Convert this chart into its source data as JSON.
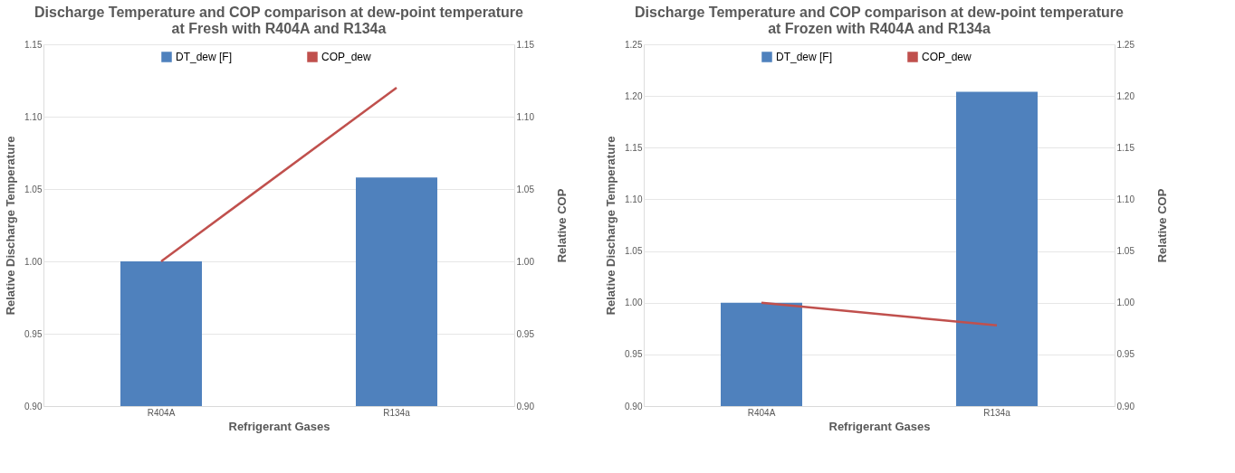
{
  "chart_data": [
    {
      "type": "bar",
      "title": "Discharge Temperature and COP comparison at dew-point temperature\nat Fresh with R404A and R134a",
      "xlabel": "Refrigerant Gases",
      "ylabel": "Relative Discharge Temperature",
      "y2label": "Relative COP",
      "categories": [
        "R404A",
        "R134a"
      ],
      "series": [
        {
          "name": "DT_dew [F]",
          "color": "#4f81bd",
          "values": [
            1.0,
            1.058
          ]
        },
        {
          "name": "COP_dew",
          "type": "line",
          "axis": "y2",
          "color": "#c0504d",
          "values": [
            1.0,
            1.12
          ]
        }
      ],
      "ylim": [
        0.9,
        1.15
      ],
      "yticks": [
        {
          "value": 0.9,
          "label": "0.90"
        },
        {
          "value": 0.95,
          "label": "0.95"
        },
        {
          "value": 1.0,
          "label": "1.00"
        },
        {
          "value": 1.05,
          "label": "1.05"
        },
        {
          "value": 1.1,
          "label": "1.10"
        },
        {
          "value": 1.15,
          "label": "1.15"
        }
      ],
      "y2lim": [
        0.9,
        1.15
      ],
      "y2ticks": [
        {
          "value": 0.9,
          "label": "0.90"
        },
        {
          "value": 0.95,
          "label": "0.95"
        },
        {
          "value": 1.0,
          "label": "1.00"
        },
        {
          "value": 1.05,
          "label": "1.05"
        },
        {
          "value": 1.1,
          "label": "1.10"
        },
        {
          "value": 1.15,
          "label": "1.15"
        }
      ],
      "grid": "y",
      "legend": "top"
    },
    {
      "type": "bar",
      "title": "Discharge Temperature and COP comparison at dew-point temperature\nat Frozen with R404A and R134a",
      "xlabel": "Refrigerant Gases",
      "ylabel": "Relative Discharge Temperature",
      "y2label": "Relative COP",
      "categories": [
        "R404A",
        "R134a"
      ],
      "series": [
        {
          "name": "DT_dew [F]",
          "color": "#4f81bd",
          "values": [
            1.0,
            1.204
          ]
        },
        {
          "name": "COP_dew",
          "type": "line",
          "axis": "y2",
          "color": "#c0504d",
          "values": [
            1.0,
            0.978
          ]
        }
      ],
      "ylim": [
        0.9,
        1.25
      ],
      "yticks": [
        {
          "value": 0.9,
          "label": "0.90"
        },
        {
          "value": 0.95,
          "label": "0.95"
        },
        {
          "value": 1.0,
          "label": "1.00"
        },
        {
          "value": 1.05,
          "label": "1.05"
        },
        {
          "value": 1.1,
          "label": "1.10"
        },
        {
          "value": 1.15,
          "label": "1.15"
        },
        {
          "value": 1.2,
          "label": "1.20"
        },
        {
          "value": 1.25,
          "label": "1.25"
        }
      ],
      "y2lim": [
        0.9,
        1.25
      ],
      "y2ticks": [
        {
          "value": 0.9,
          "label": "0.90"
        },
        {
          "value": 0.95,
          "label": "0.95"
        },
        {
          "value": 1.0,
          "label": "1.00"
        },
        {
          "value": 1.05,
          "label": "1.05"
        },
        {
          "value": 1.1,
          "label": "1.10"
        },
        {
          "value": 1.15,
          "label": "1.15"
        },
        {
          "value": 1.2,
          "label": "1.20"
        },
        {
          "value": 1.25,
          "label": "1.25"
        }
      ],
      "grid": "y",
      "legend": "top"
    }
  ]
}
